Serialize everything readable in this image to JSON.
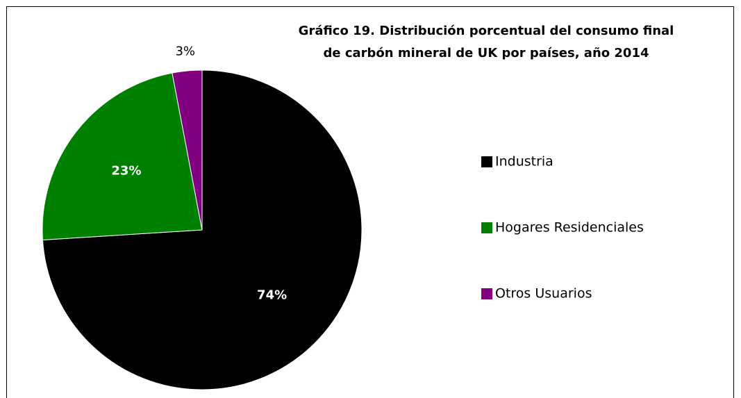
{
  "chart_data": {
    "type": "pie",
    "title": [
      "Gráfico 19. Distribución porcentual del consumo final",
      "de carbón mineral de UK por países, año 2014"
    ],
    "categories": [
      "Industria",
      "Hogares Residenciales",
      "Otros Usuarios"
    ],
    "values": [
      74,
      23,
      3
    ],
    "value_labels": [
      "74%",
      "23%",
      "3%"
    ],
    "colors": [
      "#000000",
      "#008000",
      "#800080"
    ],
    "legend": "right"
  }
}
